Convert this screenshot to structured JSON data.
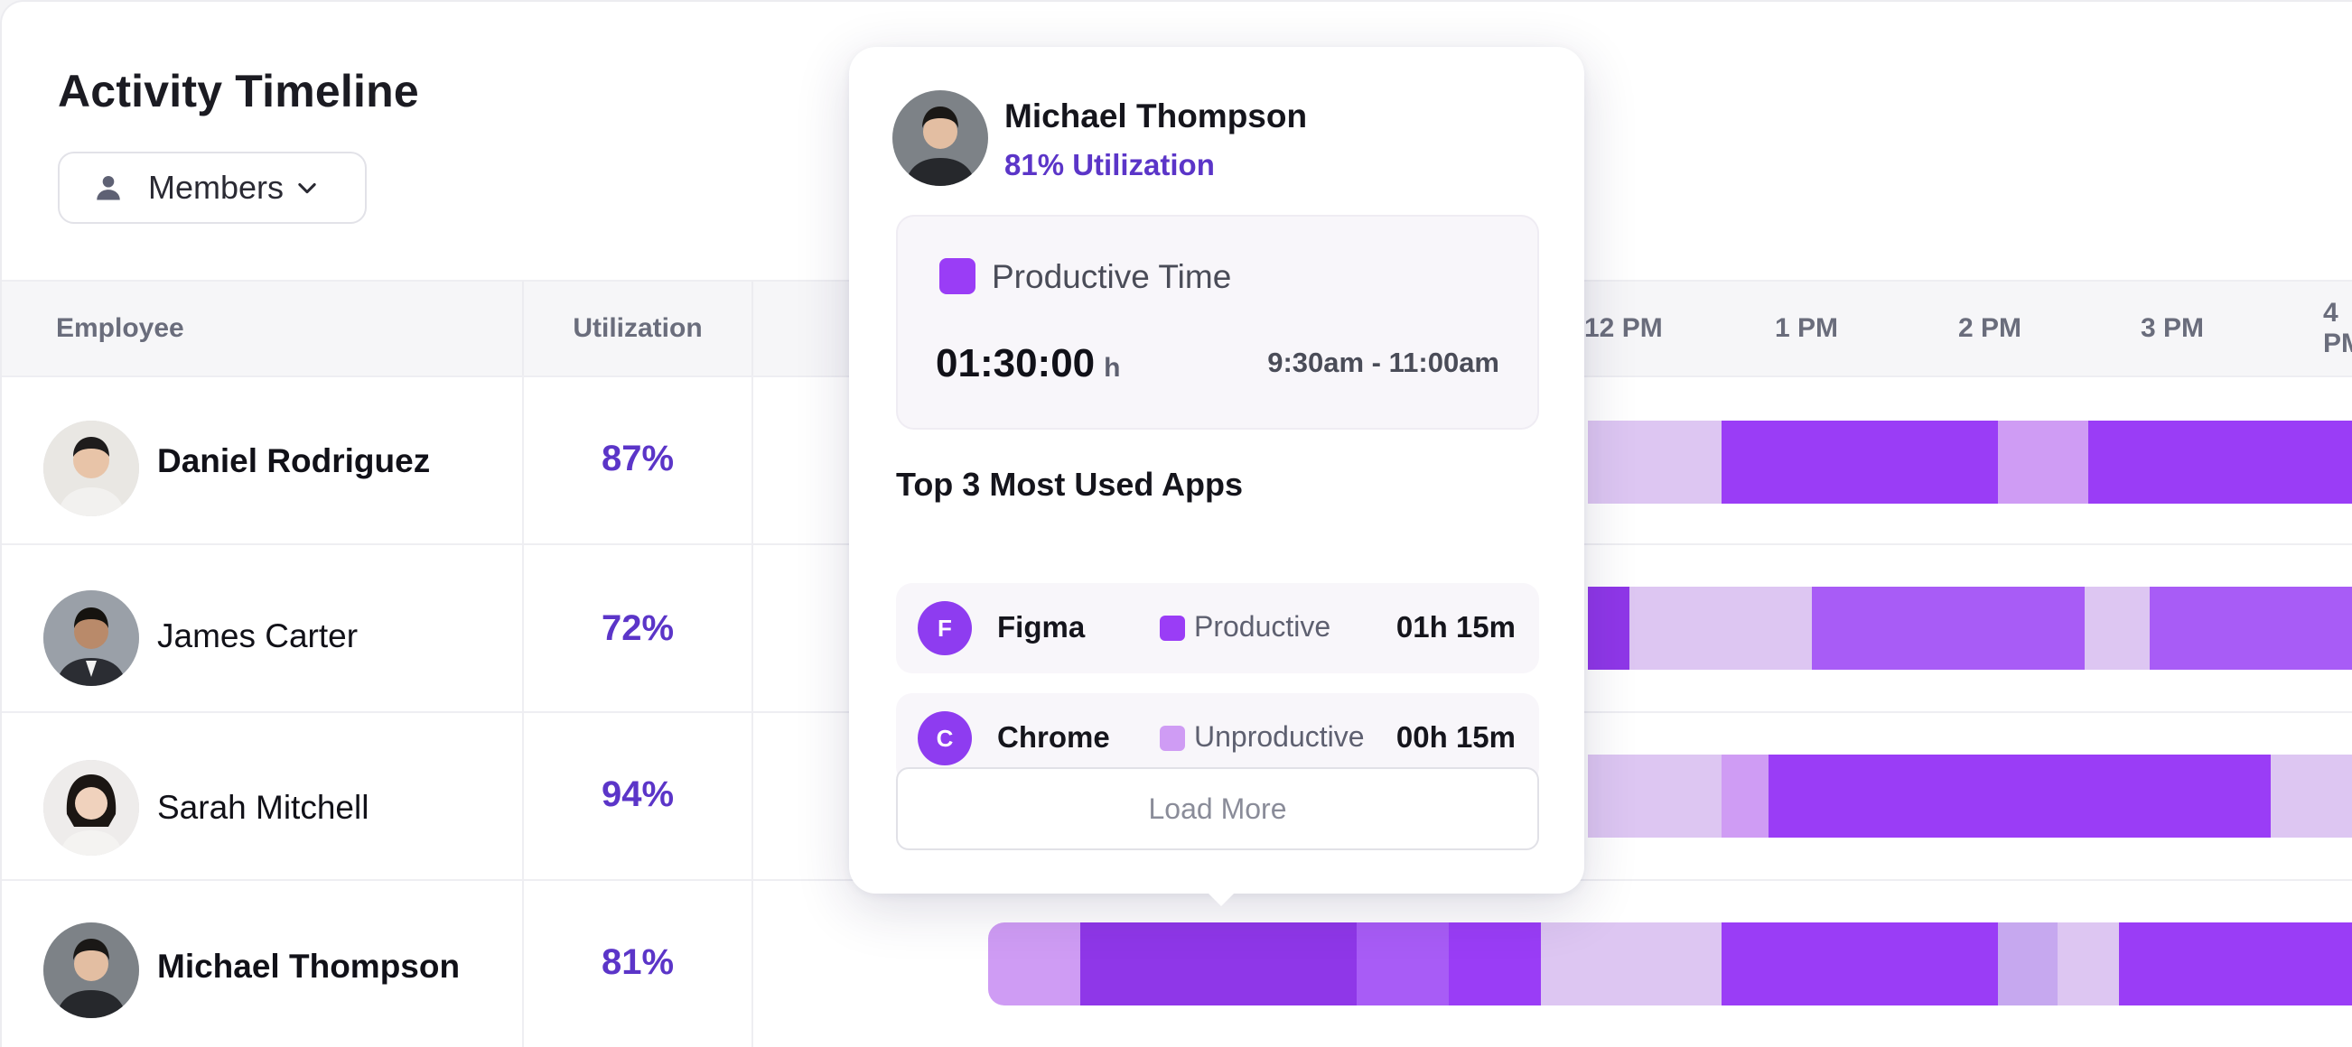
{
  "header": {
    "title": "Activity Timeline",
    "members_label": "Members",
    "members_icon": "person-icon",
    "chevron_icon": "chevron-down-icon"
  },
  "table": {
    "columns": {
      "employee": "Employee",
      "utilization": "Utilization"
    },
    "hours": [
      "12 PM",
      "1 PM",
      "2 PM",
      "3 PM",
      "4 PM"
    ],
    "rows": [
      {
        "name": "Daniel Rodriguez",
        "utilization": "87%"
      },
      {
        "name": "James Carter",
        "utilization": "72%"
      },
      {
        "name": "Sarah Mitchell",
        "utilization": "94%"
      },
      {
        "name": "Michael Thompson",
        "utilization": "81%"
      }
    ]
  },
  "tooltip": {
    "name": "Michael Thompson",
    "utilization": "81% Utilization",
    "productive": {
      "label": "Productive Time",
      "duration": "01:30:00",
      "unit": "h",
      "range": "9:30am - 11:00am",
      "color": "#9a3df6"
    },
    "apps_title": "Top 3 Most Used Apps",
    "apps": [
      {
        "initial": "F",
        "name": "Figma",
        "category": "Productive",
        "time": "01h 15m",
        "color": "#9a3df6"
      },
      {
        "initial": "C",
        "name": "Chrome",
        "category": "Unproductive",
        "time": "00h 15m",
        "color": "#cf9cf4"
      }
    ],
    "load_more": "Load More"
  },
  "colors": {
    "accent": "#5b35c8",
    "productive": "#9a3df6",
    "unproductive": "#cf9cf4",
    "idle": "#ddc6f2"
  }
}
